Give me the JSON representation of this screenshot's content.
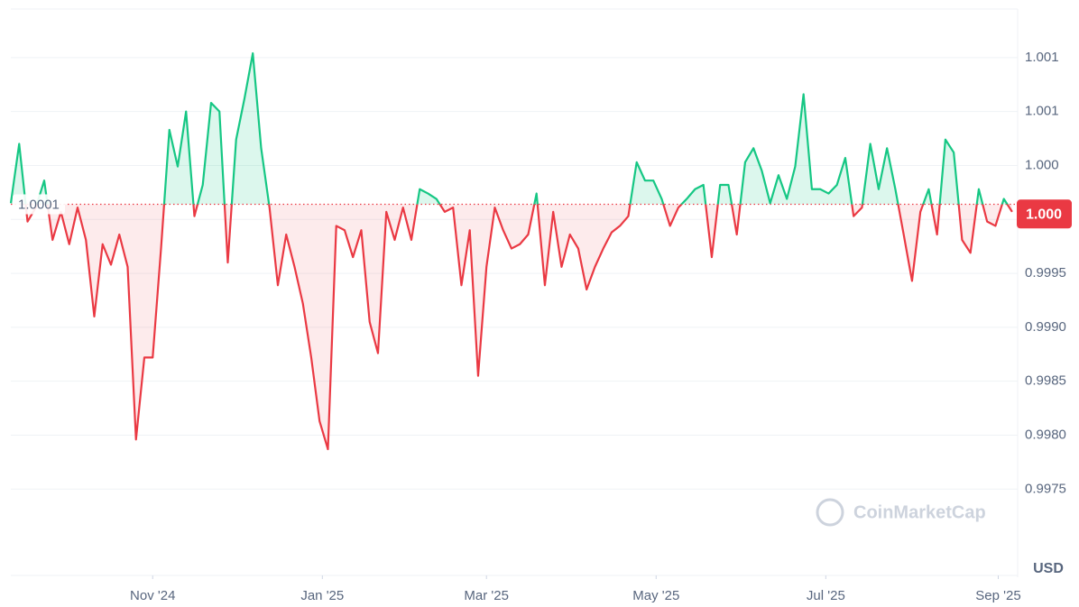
{
  "chart_data": {
    "type": "line",
    "x": [
      0,
      3,
      6,
      9,
      12,
      15,
      18,
      21,
      24,
      27,
      30,
      33,
      36,
      39,
      42,
      45,
      48,
      51,
      54,
      57,
      60,
      63,
      66,
      69,
      72,
      75,
      78,
      81,
      84,
      87,
      90,
      93,
      96,
      99,
      102,
      105,
      108,
      111,
      114,
      117,
      120,
      123,
      126,
      129,
      132,
      135,
      138,
      141,
      144,
      147,
      150,
      153,
      156,
      159,
      162,
      165,
      168,
      171,
      174,
      177,
      180,
      183,
      186,
      189,
      192,
      195,
      198,
      201,
      204,
      207,
      210,
      213,
      216,
      219,
      222,
      225,
      228,
      231,
      234,
      237,
      240,
      243,
      246,
      249,
      252,
      255,
      258,
      261,
      264,
      267,
      270,
      273,
      276,
      279,
      282,
      285,
      288,
      291,
      294,
      297,
      300,
      303,
      306,
      309,
      312,
      315,
      318,
      321,
      324,
      327,
      330,
      333,
      336,
      339,
      342,
      345,
      348,
      351,
      354,
      357,
      360
    ],
    "values": [
      1.00015,
      1.0007,
      0.99998,
      1.00011,
      1.00036,
      0.99981,
      1.00007,
      0.99977,
      1.00011,
      0.99981,
      0.9991,
      0.99977,
      0.99958,
      0.99986,
      0.99956,
      0.99796,
      0.99872,
      0.99872,
      0.99973,
      1.00083,
      1.00049,
      1.001,
      1.00003,
      1.00032,
      1.00108,
      1.001,
      0.9996,
      1.00074,
      1.00112,
      1.00154,
      1.00066,
      1.00011,
      0.99939,
      0.99986,
      0.99956,
      0.99922,
      0.99872,
      0.99813,
      0.99787,
      0.99994,
      0.9999,
      0.99965,
      0.9999,
      0.99905,
      0.99876,
      1.00007,
      0.99981,
      1.00011,
      0.99981,
      1.00028,
      1.00024,
      1.00019,
      1.00007,
      1.00011,
      0.99939,
      0.9999,
      0.99855,
      0.99956,
      1.00011,
      0.9999,
      0.99973,
      0.99977,
      0.99986,
      1.00024,
      0.99939,
      1.00007,
      0.99956,
      0.99986,
      0.99973,
      0.99935,
      0.99956,
      0.99973,
      0.99988,
      0.99994,
      1.00003,
      1.00053,
      1.00036,
      1.00036,
      1.00019,
      0.99994,
      1.00011,
      1.00019,
      1.00028,
      1.00032,
      0.99965,
      1.00032,
      1.00032,
      0.99986,
      1.00053,
      1.00066,
      1.00045,
      1.00015,
      1.00041,
      1.00019,
      1.00049,
      1.00116,
      1.00028,
      1.00028,
      1.00024,
      1.00032,
      1.00057,
      1.00003,
      1.00011,
      1.0007,
      1.00028,
      1.00066,
      1.00028,
      0.99986,
      0.99943,
      1.00007,
      1.00028,
      0.99986,
      1.00074,
      1.00062,
      0.99981,
      0.99969,
      1.00028,
      0.99998,
      0.99994,
      1.00019,
      1.00007
    ],
    "color_up": "#16c784",
    "color_down": "#ea3943",
    "baseline": {
      "value": 1.00014,
      "label": "1.0001"
    },
    "last_price": {
      "value": 1.00005,
      "label": "1.000"
    },
    "xlim": [
      0,
      361
    ],
    "ylim": [
      0.9967,
      1.00195
    ],
    "xticks": [
      {
        "value": 51,
        "label": "Nov '24"
      },
      {
        "value": 112,
        "label": "Jan '25"
      },
      {
        "value": 171,
        "label": "Mar '25"
      },
      {
        "value": 232,
        "label": "May '25"
      },
      {
        "value": 293,
        "label": "Jul '25"
      },
      {
        "value": 355,
        "label": "Sep '25"
      }
    ],
    "yticks": [
      0.9975,
      {
        "value": 0.998,
        "label": "0.9980"
      },
      0.9985,
      {
        "value": 0.999,
        "label": "0.9990"
      },
      0.9995,
      {
        "value": 1.0,
        "label": "1.000"
      },
      {
        "value": 1.0005,
        "label": "1.000"
      },
      1.001,
      {
        "value": 1.0015,
        "label": "1.001"
      }
    ],
    "grid": true,
    "currency": "USD",
    "watermark": "CoinMarketCap"
  }
}
